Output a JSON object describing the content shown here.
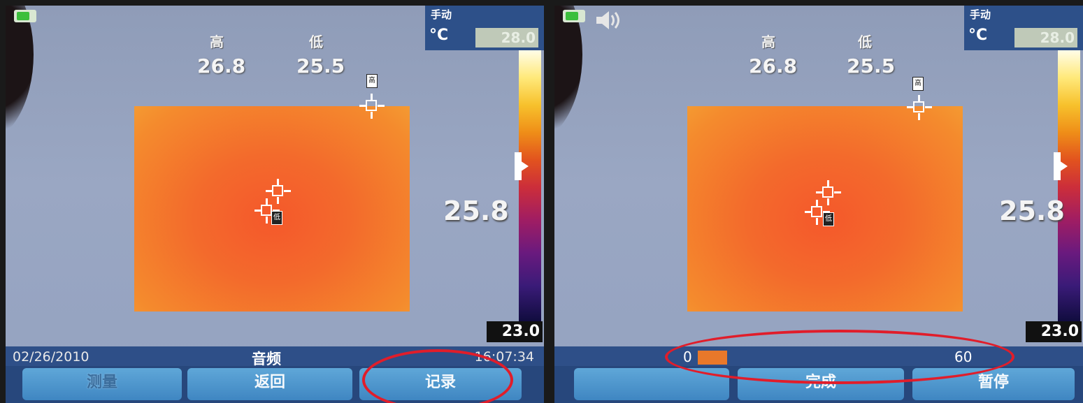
{
  "left": {
    "reading_labels": {
      "high": "高",
      "low": "低"
    },
    "reading_values": {
      "high": "26.8",
      "low": "25.5"
    },
    "mode": "手动",
    "unit": "°C",
    "span_max": "28.0",
    "center_temp": "25.8",
    "span_min": "23.0",
    "marker_high": "高",
    "marker_low": "低",
    "status": {
      "date": "02/26/2010",
      "center": "音频",
      "time": "16:07:34"
    },
    "softkeys": [
      "测量",
      "返回",
      "记录"
    ]
  },
  "right": {
    "reading_labels": {
      "high": "高",
      "low": "低"
    },
    "reading_values": {
      "high": "26.8",
      "low": "25.5"
    },
    "mode": "手动",
    "unit": "°C",
    "span_max": "28.0",
    "center_temp": "25.8",
    "span_min": "23.0",
    "marker_high": "高",
    "marker_low": "低",
    "progress": {
      "start": "0",
      "end": "60",
      "value": 2
    },
    "softkeys": [
      "",
      "完成",
      "暂停"
    ]
  },
  "colors": {
    "highlight_ring": "#e11d2a",
    "target_fill": "#f36a2c",
    "status_bar": "#2e4f88"
  },
  "icons": {
    "battery": "battery-icon",
    "speaker": "speaker-icon",
    "crosshair": "crosshair-icon"
  }
}
